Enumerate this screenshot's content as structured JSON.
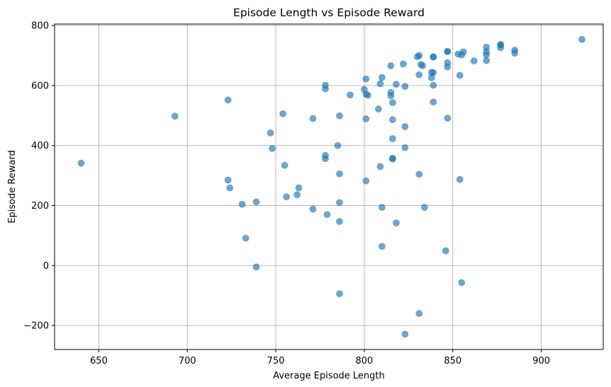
{
  "chart_data": {
    "type": "scatter",
    "title": "Episode Length vs Episode Reward",
    "xlabel": "Average Episode Length",
    "ylabel": "Episode Reward",
    "xlim": [
      625,
      935
    ],
    "ylim": [
      -280,
      805
    ],
    "xticks": [
      650,
      700,
      750,
      800,
      850,
      900
    ],
    "yticks": [
      -200,
      0,
      200,
      400,
      600,
      800
    ],
    "grid": true,
    "point_color": "#1f77b4",
    "point_alpha": 0.65,
    "points": [
      [
        640,
        341
      ],
      [
        693,
        498
      ],
      [
        723,
        552
      ],
      [
        723,
        285
      ],
      [
        724,
        259
      ],
      [
        731,
        204
      ],
      [
        733,
        91
      ],
      [
        739,
        212
      ],
      [
        739,
        -5
      ],
      [
        747,
        442
      ],
      [
        748,
        390
      ],
      [
        754,
        506
      ],
      [
        755,
        334
      ],
      [
        756,
        229
      ],
      [
        762,
        236
      ],
      [
        763,
        259
      ],
      [
        771,
        188
      ],
      [
        771,
        490
      ],
      [
        778,
        601
      ],
      [
        778,
        589
      ],
      [
        778,
        367
      ],
      [
        778,
        356
      ],
      [
        779,
        170
      ],
      [
        785,
        400
      ],
      [
        786,
        306
      ],
      [
        786,
        499
      ],
      [
        786,
        210
      ],
      [
        786,
        147
      ],
      [
        786,
        -94
      ],
      [
        792,
        569
      ],
      [
        800,
        587
      ],
      [
        801,
        571
      ],
      [
        801,
        622
      ],
      [
        801,
        489
      ],
      [
        801,
        282
      ],
      [
        802,
        568
      ],
      [
        808,
        522
      ],
      [
        809,
        330
      ],
      [
        809,
        606
      ],
      [
        810,
        627
      ],
      [
        810,
        194
      ],
      [
        810,
        64
      ],
      [
        815,
        666
      ],
      [
        815,
        566
      ],
      [
        815,
        577
      ],
      [
        816,
        543
      ],
      [
        816,
        486
      ],
      [
        816,
        423
      ],
      [
        816,
        358
      ],
      [
        816,
        355
      ],
      [
        818,
        604
      ],
      [
        818,
        142
      ],
      [
        822,
        672
      ],
      [
        823,
        597
      ],
      [
        823,
        463
      ],
      [
        823,
        393
      ],
      [
        823,
        -229
      ],
      [
        830,
        696
      ],
      [
        831,
        700
      ],
      [
        831,
        636
      ],
      [
        831,
        304
      ],
      [
        831,
        -160
      ],
      [
        832,
        670
      ],
      [
        833,
        666
      ],
      [
        834,
        194
      ],
      [
        838,
        644
      ],
      [
        838,
        626
      ],
      [
        839,
        695
      ],
      [
        839,
        696
      ],
      [
        839,
        643
      ],
      [
        839,
        601
      ],
      [
        839,
        545
      ],
      [
        846,
        49
      ],
      [
        847,
        714
      ],
      [
        847,
        713
      ],
      [
        847,
        662
      ],
      [
        847,
        676
      ],
      [
        847,
        491
      ],
      [
        853,
        705
      ],
      [
        854,
        634
      ],
      [
        854,
        287
      ],
      [
        855,
        702
      ],
      [
        855,
        -57
      ],
      [
        856,
        712
      ],
      [
        862,
        682
      ],
      [
        869,
        728
      ],
      [
        869,
        713
      ],
      [
        869,
        702
      ],
      [
        869,
        683
      ],
      [
        877,
        737
      ],
      [
        877,
        735
      ],
      [
        877,
        726
      ],
      [
        885,
        718
      ],
      [
        885,
        708
      ],
      [
        923,
        754
      ]
    ]
  }
}
